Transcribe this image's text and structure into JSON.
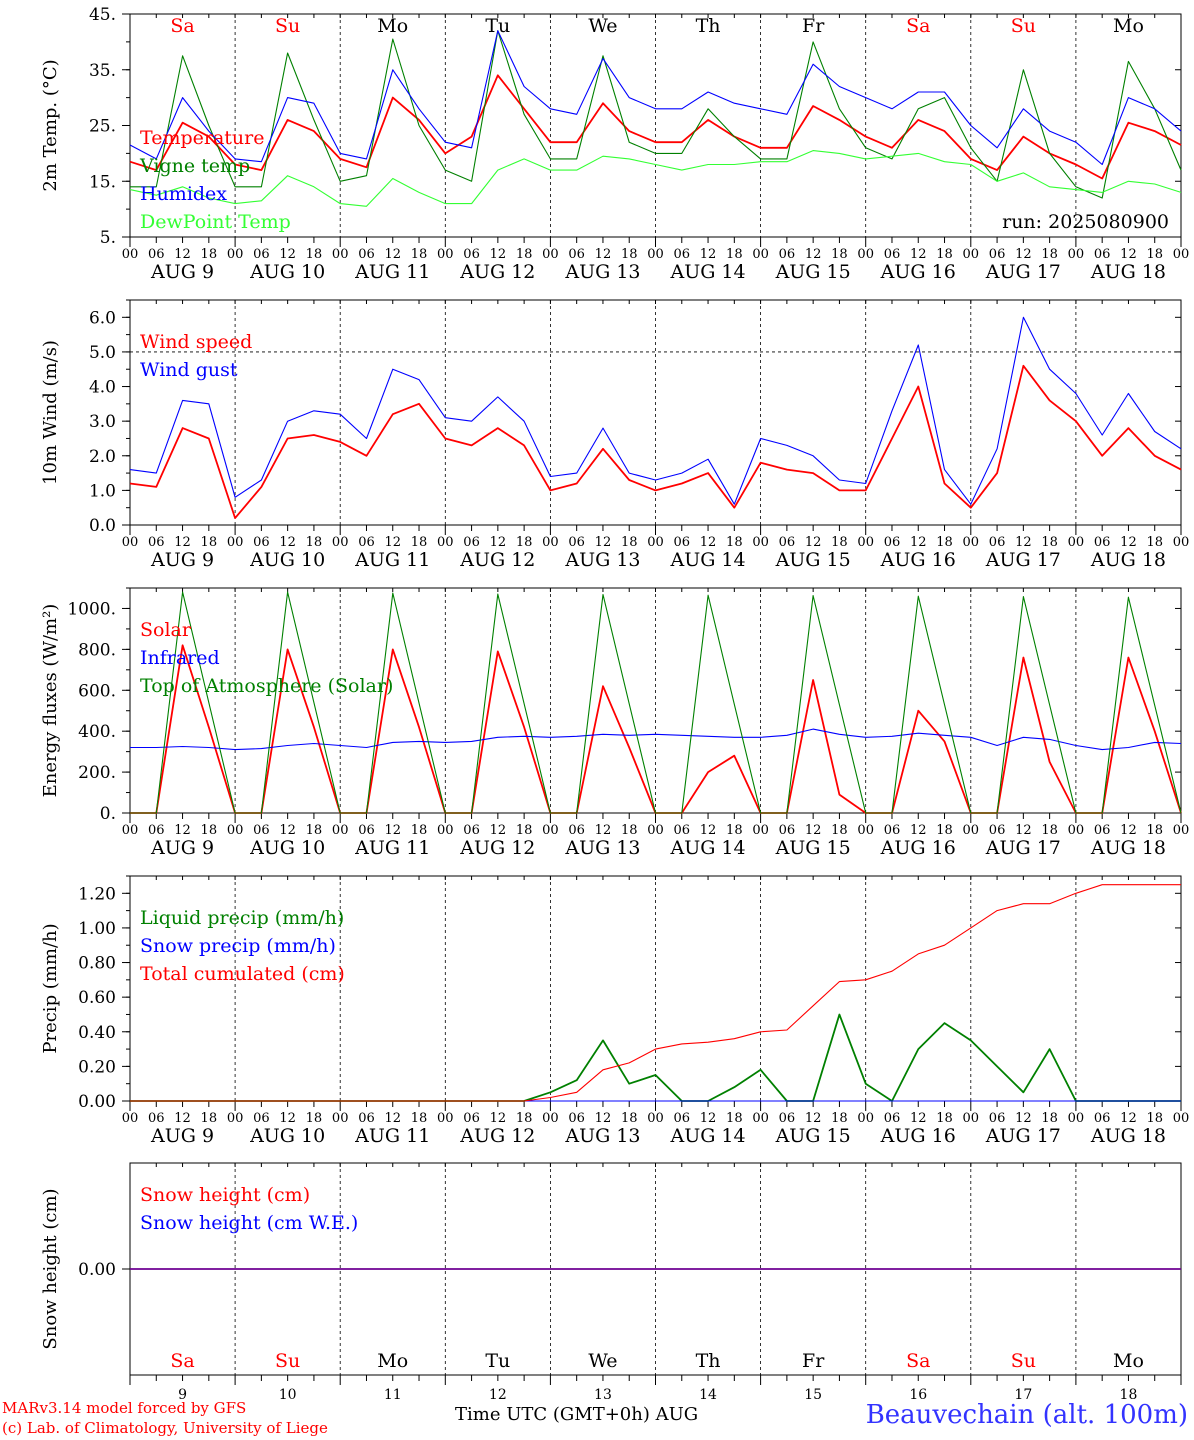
{
  "header": {
    "run_label": "run: 2025080900"
  },
  "footer": {
    "model": "MARv3.14 model forced by GFS",
    "credit": "(c) Lab. of Climatology, University of Liege",
    "xlabel": "Time UTC (GMT+0h) AUG",
    "station": "Beauvechain (alt. 100m)"
  },
  "colors": {
    "red": "#ff0000",
    "green": "#008000",
    "blue": "#0000ff",
    "lime": "#33ff33"
  },
  "chart_data": [
    {
      "type": "line",
      "ylabel": "2m Temp. (°C)",
      "ylim": [
        5,
        45
      ],
      "yticks": [
        "5.",
        "15.",
        "25.",
        "35.",
        "45."
      ],
      "ytick_values": [
        5,
        15,
        25,
        35,
        45
      ],
      "hline": null,
      "day_names": [
        "Sa",
        "Su",
        "Mo",
        "Tu",
        "We",
        "Th",
        "Fr",
        "Sa",
        "Su",
        "Mo"
      ],
      "day_name_colors": [
        "#ff0000",
        "#ff0000",
        "#000000",
        "#000000",
        "#000000",
        "#000000",
        "#000000",
        "#ff0000",
        "#ff0000",
        "#000000"
      ],
      "hour_ticks": [
        "00",
        "06",
        "12",
        "18"
      ],
      "date_labels": [
        "AUG 9",
        "AUG 10",
        "AUG 11",
        "AUG 12",
        "AUG 13",
        "AUG 14",
        "AUG 15",
        "AUG 16",
        "AUG 17",
        "AUG 18"
      ],
      "x_hours": [
        0,
        6,
        12,
        18,
        24,
        30,
        36,
        42,
        48,
        54,
        60,
        66,
        72,
        78,
        84,
        90,
        96,
        102,
        108,
        114,
        120,
        126,
        132,
        138,
        144,
        150,
        156,
        162,
        168,
        174,
        180,
        186,
        192,
        198,
        204,
        210,
        216,
        222,
        228,
        234,
        240
      ],
      "series": [
        {
          "name": "Temperature",
          "color": "#ff0000",
          "values": [
            18.5,
            17,
            25.5,
            23,
            18,
            17,
            26,
            24,
            19,
            17.5,
            30,
            26,
            20,
            23,
            34,
            28,
            22,
            22,
            29,
            24,
            22,
            22,
            26,
            23,
            21,
            21,
            28.5,
            26,
            23,
            21,
            26,
            24,
            19,
            17,
            23,
            20,
            18,
            15.5,
            25.5,
            24,
            21.5
          ]
        },
        {
          "name": "Vigne temp",
          "color": "#008000",
          "values": [
            14,
            14,
            37.5,
            25,
            14,
            14,
            38,
            26,
            15,
            16,
            40.5,
            25,
            17,
            15,
            42,
            27,
            19,
            19,
            37.5,
            22,
            20,
            20,
            28,
            23,
            19,
            19,
            40,
            28,
            21,
            19,
            28,
            30,
            21,
            15,
            35,
            20,
            14,
            12,
            36.5,
            28,
            17
          ]
        },
        {
          "name": "Humidex",
          "color": "#0000ff",
          "values": [
            21.5,
            19,
            30,
            24,
            19,
            18.5,
            30,
            29,
            20,
            19,
            35,
            28,
            22,
            21,
            42,
            32,
            28,
            27,
            37,
            30,
            28,
            28,
            31,
            29,
            28,
            27,
            36,
            32,
            30,
            28,
            31,
            31,
            25,
            21,
            28,
            24,
            22,
            18,
            30,
            28,
            24
          ]
        },
        {
          "name": "DewPoint Temp",
          "color": "#33ff33",
          "values": [
            13.5,
            12.5,
            14,
            12,
            11,
            11.5,
            16,
            14,
            11,
            10.5,
            15.5,
            13,
            11,
            11,
            17,
            19,
            17,
            17,
            19.5,
            19,
            18,
            17,
            18,
            18,
            18.5,
            18.5,
            20.5,
            20,
            19,
            19.5,
            20,
            18.5,
            18,
            15,
            16.5,
            14,
            13.5,
            13,
            15,
            14.5,
            13
          ]
        }
      ]
    },
    {
      "type": "line",
      "ylabel": "10m Wind (m/s)",
      "ylim": [
        0,
        6.5
      ],
      "yticks": [
        "0.0",
        "1.0",
        "2.0",
        "3.0",
        "4.0",
        "5.0",
        "6.0"
      ],
      "ytick_values": [
        0,
        1,
        2,
        3,
        4,
        5,
        6
      ],
      "hline": 5.0,
      "day_names": [],
      "day_name_colors": [],
      "hour_ticks": [
        "00",
        "06",
        "12",
        "18"
      ],
      "date_labels": [
        "AUG 9",
        "AUG 10",
        "AUG 11",
        "AUG 12",
        "AUG 13",
        "AUG 14",
        "AUG 15",
        "AUG 16",
        "AUG 17",
        "AUG 18"
      ],
      "x_hours": [
        0,
        6,
        12,
        18,
        24,
        30,
        36,
        42,
        48,
        54,
        60,
        66,
        72,
        78,
        84,
        90,
        96,
        102,
        108,
        114,
        120,
        126,
        132,
        138,
        144,
        150,
        156,
        162,
        168,
        174,
        180,
        186,
        192,
        198,
        204,
        210,
        216,
        222,
        228,
        234,
        240
      ],
      "series": [
        {
          "name": "Wind speed",
          "color": "#ff0000",
          "values": [
            1.2,
            1.1,
            2.8,
            2.5,
            0.2,
            1.1,
            2.5,
            2.6,
            2.4,
            2.0,
            3.2,
            3.5,
            2.5,
            2.3,
            2.8,
            2.3,
            1.0,
            1.2,
            2.2,
            1.3,
            1.0,
            1.2,
            1.5,
            0.5,
            1.8,
            1.6,
            1.5,
            1.0,
            1.0,
            2.5,
            4.0,
            1.2,
            0.5,
            1.5,
            4.6,
            3.6,
            3.0,
            2.0,
            2.8,
            2.0,
            1.6
          ]
        },
        {
          "name": "Wind gust",
          "color": "#0000ff",
          "values": [
            1.6,
            1.5,
            3.6,
            3.5,
            0.8,
            1.3,
            3.0,
            3.3,
            3.2,
            2.5,
            4.5,
            4.2,
            3.1,
            3.0,
            3.7,
            3.0,
            1.4,
            1.5,
            2.8,
            1.5,
            1.3,
            1.5,
            1.9,
            0.6,
            2.5,
            2.3,
            2.0,
            1.3,
            1.2,
            3.3,
            5.2,
            1.6,
            0.6,
            2.2,
            6.0,
            4.5,
            3.8,
            2.6,
            3.8,
            2.7,
            2.2
          ]
        }
      ]
    },
    {
      "type": "line",
      "ylabel": "Energy fluxes (W/m²)",
      "ylim": [
        0,
        1100
      ],
      "yticks": [
        "0.",
        "200.",
        "400.",
        "600.",
        "800.",
        "1000."
      ],
      "ytick_values": [
        0,
        200,
        400,
        600,
        800,
        1000
      ],
      "hline": null,
      "day_names": [],
      "day_name_colors": [],
      "hour_ticks": [
        "00",
        "06",
        "12",
        "18"
      ],
      "date_labels": [
        "AUG 9",
        "AUG 10",
        "AUG 11",
        "AUG 12",
        "AUG 13",
        "AUG 14",
        "AUG 15",
        "AUG 16",
        "AUG 17",
        "AUG 18"
      ],
      "x_hours": [
        0,
        6,
        12,
        18,
        24,
        30,
        36,
        42,
        48,
        54,
        60,
        66,
        72,
        78,
        84,
        90,
        96,
        102,
        108,
        114,
        120,
        126,
        132,
        138,
        144,
        150,
        156,
        162,
        168,
        174,
        180,
        186,
        192,
        198,
        204,
        210,
        216,
        222,
        228,
        234,
        240
      ],
      "series": [
        {
          "name": "Solar",
          "color": "#ff0000",
          "values": [
            0,
            0,
            820,
            420,
            0,
            0,
            800,
            420,
            0,
            0,
            800,
            420,
            0,
            0,
            790,
            420,
            0,
            0,
            620,
            320,
            0,
            0,
            200,
            280,
            0,
            0,
            650,
            90,
            0,
            0,
            500,
            350,
            0,
            0,
            760,
            250,
            0,
            0,
            760,
            400,
            0
          ]
        },
        {
          "name": "Infrared",
          "color": "#0000ff",
          "values": [
            320,
            320,
            325,
            320,
            310,
            315,
            330,
            340,
            330,
            320,
            345,
            350,
            345,
            350,
            370,
            375,
            370,
            375,
            385,
            380,
            385,
            380,
            375,
            370,
            370,
            380,
            410,
            385,
            370,
            375,
            390,
            380,
            370,
            330,
            370,
            360,
            330,
            310,
            320,
            345,
            340
          ]
        },
        {
          "name": "Top of Atmosphere (Solar)",
          "color": "#008000",
          "values": [
            0,
            0,
            1080,
            540,
            0,
            0,
            1080,
            540,
            0,
            0,
            1075,
            538,
            0,
            0,
            1070,
            535,
            0,
            0,
            1068,
            534,
            0,
            0,
            1065,
            532,
            0,
            0,
            1063,
            530,
            0,
            0,
            1060,
            530,
            0,
            0,
            1058,
            529,
            0,
            0,
            1055,
            527,
            0
          ]
        }
      ]
    },
    {
      "type": "line",
      "ylabel": "Precip (mm/h)",
      "ylim": [
        0,
        1.3
      ],
      "yticks": [
        "0.00",
        "0.20",
        "0.40",
        "0.60",
        "0.80",
        "1.00",
        "1.20"
      ],
      "ytick_values": [
        0,
        0.2,
        0.4,
        0.6,
        0.8,
        1.0,
        1.2
      ],
      "hline": null,
      "day_names": [],
      "day_name_colors": [],
      "hour_ticks": [
        "00",
        "06",
        "12",
        "18"
      ],
      "date_labels": [
        "AUG 9",
        "AUG 10",
        "AUG 11",
        "AUG 12",
        "AUG 13",
        "AUG 14",
        "AUG 15",
        "AUG 16",
        "AUG 17",
        "AUG 18"
      ],
      "x_hours": [
        0,
        6,
        12,
        18,
        24,
        30,
        36,
        42,
        48,
        54,
        60,
        66,
        72,
        78,
        84,
        90,
        96,
        102,
        108,
        114,
        120,
        126,
        132,
        138,
        144,
        150,
        156,
        162,
        168,
        174,
        180,
        186,
        192,
        198,
        204,
        210,
        216,
        222,
        228,
        234,
        240
      ],
      "series": [
        {
          "name": "Liquid precip (mm/h)",
          "color": "#008000",
          "values": [
            0,
            0,
            0,
            0,
            0,
            0,
            0,
            0,
            0,
            0,
            0,
            0,
            0,
            0,
            0,
            0,
            0.05,
            0.12,
            0.35,
            0.1,
            0.15,
            0,
            0,
            0.08,
            0.18,
            0,
            0,
            0.5,
            0.1,
            0,
            0.3,
            0.45,
            0.35,
            0.2,
            0.05,
            0.3,
            0,
            0,
            0,
            0,
            0
          ]
        },
        {
          "name": "Snow precip (mm/h)",
          "color": "#0000ff",
          "values": [
            0,
            0,
            0,
            0,
            0,
            0,
            0,
            0,
            0,
            0,
            0,
            0,
            0,
            0,
            0,
            0,
            0,
            0,
            0,
            0,
            0,
            0,
            0,
            0,
            0,
            0,
            0,
            0,
            0,
            0,
            0,
            0,
            0,
            0,
            0,
            0,
            0,
            0,
            0,
            0,
            0
          ]
        },
        {
          "name": "Total cumulated (cm)",
          "color": "#ff0000",
          "values": [
            0,
            0,
            0,
            0,
            0,
            0,
            0,
            0,
            0,
            0,
            0,
            0,
            0,
            0,
            0,
            0,
            0.02,
            0.05,
            0.18,
            0.22,
            0.3,
            0.33,
            0.34,
            0.36,
            0.4,
            0.41,
            0.55,
            0.69,
            0.7,
            0.75,
            0.85,
            0.9,
            1.0,
            1.1,
            1.14,
            1.14,
            1.2,
            1.25,
            1.25,
            1.25,
            1.25
          ]
        }
      ]
    },
    {
      "type": "line",
      "ylabel": "Snow height (cm)",
      "ylim": [
        -1,
        1
      ],
      "yticks": [
        "0.00"
      ],
      "ytick_values": [
        0
      ],
      "hline": null,
      "day_names": [
        "Sa",
        "Su",
        "Mo",
        "Tu",
        "We",
        "Th",
        "Fr",
        "Sa",
        "Su",
        "Mo"
      ],
      "day_name_colors": [
        "#ff0000",
        "#ff0000",
        "#000000",
        "#000000",
        "#000000",
        "#000000",
        "#000000",
        "#ff0000",
        "#ff0000",
        "#000000"
      ],
      "hour_ticks": [],
      "date_labels": [
        "9",
        "10",
        "11",
        "12",
        "13",
        "14",
        "15",
        "16",
        "17",
        "18"
      ],
      "x_hours": [
        0,
        240
      ],
      "series": [
        {
          "name": "Snow height (cm)",
          "color": "#ff0000",
          "values": [
            0,
            0
          ]
        },
        {
          "name": "Snow height (cm W.E.)",
          "color": "#0000ff",
          "values": [
            0,
            0
          ]
        }
      ]
    }
  ]
}
